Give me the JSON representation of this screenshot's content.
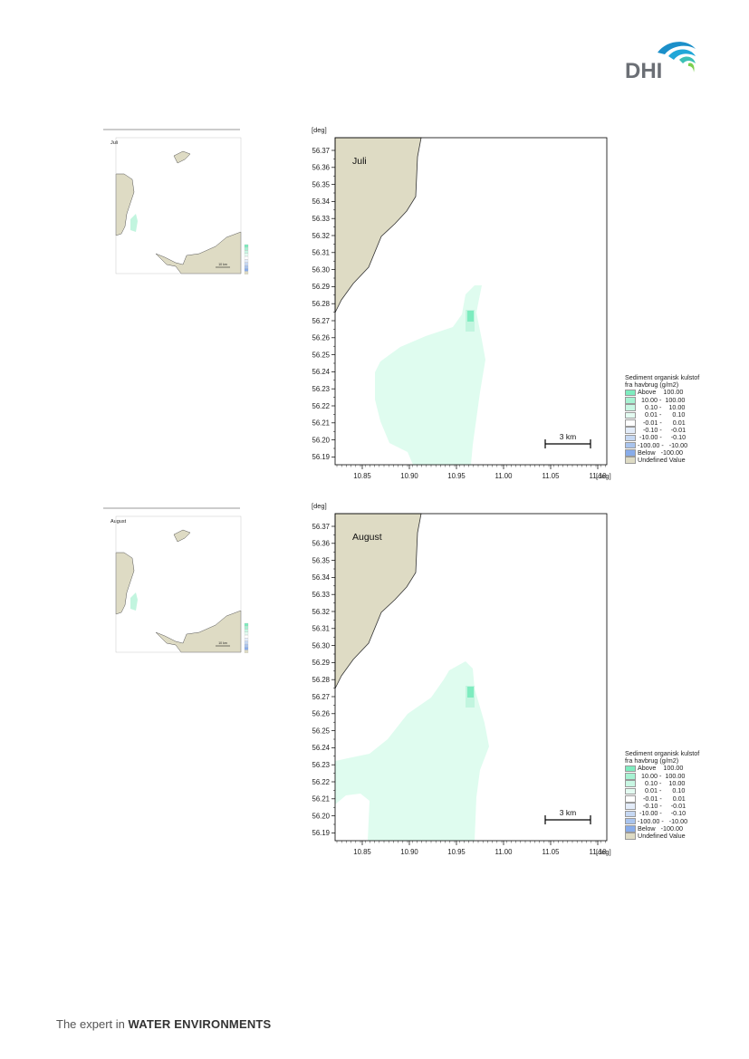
{
  "footer": {
    "prefix": "The expert in ",
    "bold": "WATER ENVIRONMENTS"
  },
  "logo": {
    "text": "DHI"
  },
  "colors": {
    "land": "#dedbc4",
    "plume_light": "#dffcef",
    "plume_mid": "#c2f5df",
    "plume_dark": "#7eecbf",
    "frame": "#000000"
  },
  "unit_label": "[deg]",
  "maps": [
    {
      "month": "Juli",
      "x_ticks": [
        "10.85",
        "10.90",
        "10.95",
        "11.00",
        "11.05",
        "11.10"
      ],
      "y_ticks": [
        "56.37",
        "56.36",
        "56.35",
        "56.34",
        "56.33",
        "56.32",
        "56.31",
        "56.30",
        "56.29",
        "56.28",
        "56.27",
        "56.26",
        "56.25",
        "56.24",
        "56.23",
        "56.22",
        "56.21",
        "56.20",
        "56.19"
      ],
      "scale_bar": "3 km",
      "legend": {
        "title_1": "Sediment organisk kulstof",
        "title_2": "fra havbrug (g/m2)",
        "items": [
          {
            "label": "Above    100.00",
            "color": "#7eecbf"
          },
          {
            "label": "  10.00 -  100.00",
            "color": "#a7f2d2"
          },
          {
            "label": "    0.10 -    10.00",
            "color": "#c8f7e3"
          },
          {
            "label": "    0.01 -      0.10",
            "color": "#e3fbf1"
          },
          {
            "label": "   -0.01 -      0.01",
            "color": "#ffffff"
          },
          {
            "label": "   -0.10 -     -0.01",
            "color": "#e3ecf9"
          },
          {
            "label": " -10.00 -     -0.10",
            "color": "#c6d8f3"
          },
          {
            "label": "-100.00 -   -10.00",
            "color": "#a9c4ee"
          },
          {
            "label": "Below   -100.00",
            "color": "#88acea"
          },
          {
            "label": "Undefined Value",
            "color": "#dedbc4"
          }
        ]
      }
    },
    {
      "month": "August",
      "x_ticks": [
        "10.85",
        "10.90",
        "10.95",
        "11.00",
        "11.05",
        "11.10"
      ],
      "y_ticks": [
        "56.37",
        "56.36",
        "56.35",
        "56.34",
        "56.33",
        "56.32",
        "56.31",
        "56.30",
        "56.29",
        "56.28",
        "56.27",
        "56.26",
        "56.25",
        "56.24",
        "56.23",
        "56.22",
        "56.21",
        "56.20",
        "56.19"
      ],
      "scale_bar": "3 km",
      "legend": {
        "title_1": "Sediment organisk kulstof",
        "title_2": "fra havbrug (g/m2)",
        "items": [
          {
            "label": "Above    100.00",
            "color": "#7eecbf"
          },
          {
            "label": "  10.00 -  100.00",
            "color": "#a7f2d2"
          },
          {
            "label": "    0.10 -    10.00",
            "color": "#c8f7e3"
          },
          {
            "label": "    0.01 -      0.10",
            "color": "#e3fbf1"
          },
          {
            "label": "   -0.01 -      0.01",
            "color": "#ffffff"
          },
          {
            "label": "   -0.10 -     -0.01",
            "color": "#e3ecf9"
          },
          {
            "label": " -10.00 -     -0.10",
            "color": "#c6d8f3"
          },
          {
            "label": "-100.00 -   -10.00",
            "color": "#a9c4ee"
          },
          {
            "label": "Below   -100.00",
            "color": "#88acea"
          },
          {
            "label": "Undefined Value",
            "color": "#dedbc4"
          }
        ]
      }
    }
  ],
  "thumbnails": [
    {
      "month": "Juli",
      "scale_bar": "10 km"
    },
    {
      "month": "August",
      "scale_bar": "10 km"
    }
  ]
}
